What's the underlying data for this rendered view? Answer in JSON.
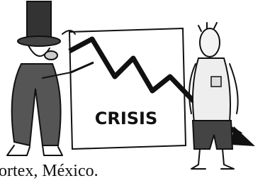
{
  "board": {
    "text": "CRISIS"
  },
  "caption": "ortex, México."
}
